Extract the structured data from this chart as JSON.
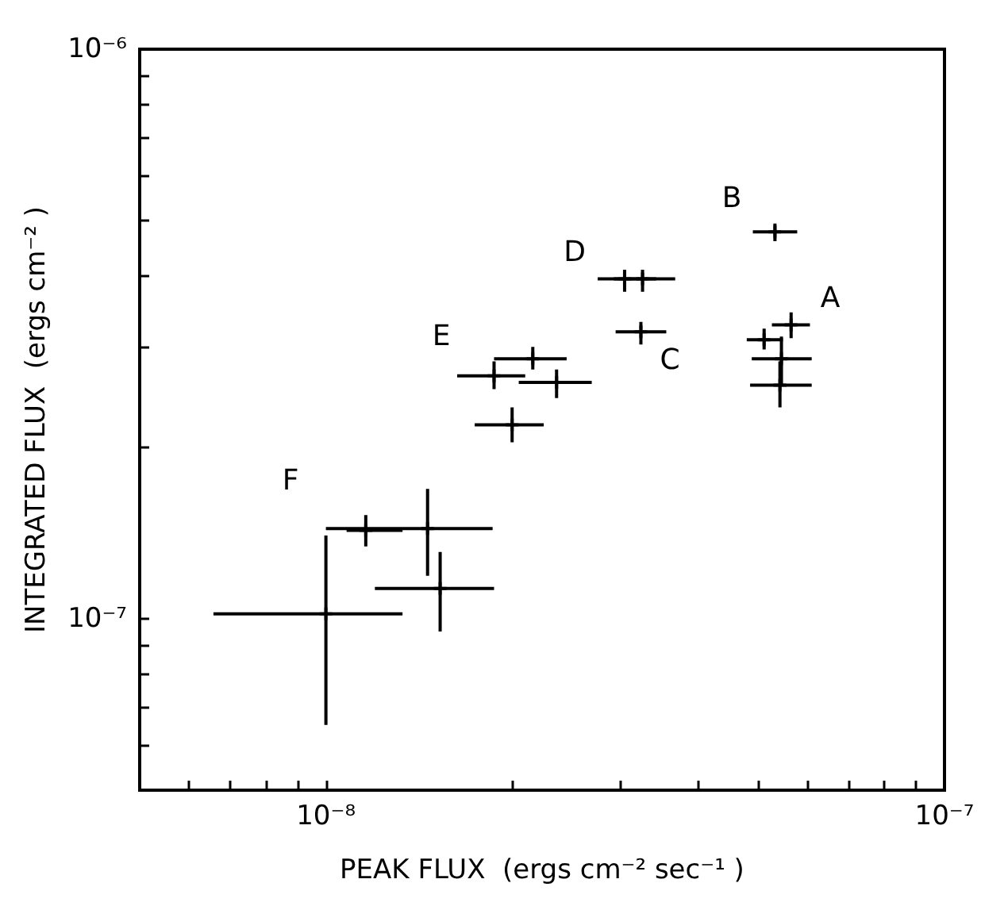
{
  "chart_data": {
    "type": "scatter",
    "marker": "cross",
    "log": "xy",
    "grid": false,
    "xlabel": "PEAK FLUX  (ergs cm⁻² sec⁻¹ )",
    "ylabel": "INTEGRATED FLUX  (ergs cm⁻² )",
    "xlim": [
      5e-09,
      1e-07
    ],
    "ylim": [
      5e-08,
      1e-06
    ],
    "xticks": [
      {
        "value": 6e-09,
        "label": null
      },
      {
        "value": 7e-09,
        "label": null
      },
      {
        "value": 8e-09,
        "label": null
      },
      {
        "value": 9e-09,
        "label": null
      },
      {
        "value": 1e-08,
        "label": "10⁻⁸"
      },
      {
        "value": 2e-08,
        "label": null
      },
      {
        "value": 3e-08,
        "label": null
      },
      {
        "value": 4e-08,
        "label": null
      },
      {
        "value": 5e-08,
        "label": null
      },
      {
        "value": 6e-08,
        "label": null
      },
      {
        "value": 7e-08,
        "label": null
      },
      {
        "value": 8e-08,
        "label": null
      },
      {
        "value": 9e-08,
        "label": null
      },
      {
        "value": 1e-07,
        "label": "10⁻⁷"
      }
    ],
    "yticks": [
      {
        "value": 6e-08,
        "label": null
      },
      {
        "value": 7e-08,
        "label": null
      },
      {
        "value": 8e-08,
        "label": null
      },
      {
        "value": 9e-08,
        "label": null
      },
      {
        "value": 1e-07,
        "label": "10⁻⁷"
      },
      {
        "value": 2e-07,
        "label": null
      },
      {
        "value": 3e-07,
        "label": null
      },
      {
        "value": 4e-07,
        "label": null
      },
      {
        "value": 5e-07,
        "label": null
      },
      {
        "value": 6e-07,
        "label": null
      },
      {
        "value": 7e-07,
        "label": null
      },
      {
        "value": 8e-07,
        "label": null
      },
      {
        "value": 9e-07,
        "label": null
      },
      {
        "value": 1e-06,
        "label": "10⁻⁶"
      }
    ],
    "x": [
      5.32e-08,
      3.04e-08,
      3.25e-08,
      3.23e-08,
      5.65e-08,
      5.11e-08,
      5.45e-08,
      5.42e-08,
      2.16e-08,
      1.87e-08,
      2.36e-08,
      2e-08,
      1.16e-08,
      1e-08,
      1.46e-08,
      1.53e-08
    ],
    "values": [
      4.78e-07,
      3.95e-07,
      3.95e-07,
      3.19e-07,
      3.28e-07,
      3.09e-07,
      2.86e-07,
      2.57e-07,
      2.86e-07,
      2.67e-07,
      2.6e-07,
      2.19e-07,
      1.43e-07,
      1.02e-07,
      1.44e-07,
      1.13e-07
    ],
    "xerrors": [
      [
        4.9e-08,
        5.78e-08
      ],
      [
        2.75e-08,
        3.42e-08
      ],
      [
        2.92e-08,
        3.67e-08
      ],
      [
        2.94e-08,
        3.55e-08
      ],
      [
        5.26e-08,
        6.06e-08
      ],
      [
        4.79e-08,
        5.48e-08
      ],
      [
        4.88e-08,
        6.1e-08
      ],
      [
        4.85e-08,
        6.1e-08
      ],
      [
        1.87e-08,
        2.45e-08
      ],
      [
        1.63e-08,
        2.1e-08
      ],
      [
        2.05e-08,
        2.69e-08
      ],
      [
        1.74e-08,
        2.25e-08
      ],
      [
        1.08e-08,
        1.33e-08
      ],
      [
        6.58e-09,
        1.33e-08
      ],
      [
        1e-08,
        1.86e-08
      ],
      [
        1.2e-08,
        1.87e-08
      ]
    ],
    "errors": [
      [
        4.6e-07,
        4.94e-07
      ],
      [
        3.75e-07,
        4.1e-07
      ],
      [
        3.75e-07,
        4.1e-07
      ],
      [
        3.03e-07,
        3.32e-07
      ],
      [
        3.11e-07,
        3.45e-07
      ],
      [
        2.97e-07,
        3.23e-07
      ],
      [
        2.58e-07,
        3.13e-07
      ],
      [
        2.35e-07,
        2.83e-07
      ],
      [
        2.74e-07,
        3e-07
      ],
      [
        2.53e-07,
        2.83e-07
      ],
      [
        2.44e-07,
        2.74e-07
      ],
      [
        2.04e-07,
        2.35e-07
      ],
      [
        1.34e-07,
        1.52e-07
      ],
      [
        6.51e-08,
        1.4e-07
      ],
      [
        1.19e-07,
        1.69e-07
      ],
      [
        9.5e-08,
        1.31e-07
      ]
    ],
    "color": "#000000",
    "annotations": [
      "A",
      "B",
      "C",
      "D",
      "E",
      "F"
    ]
  }
}
